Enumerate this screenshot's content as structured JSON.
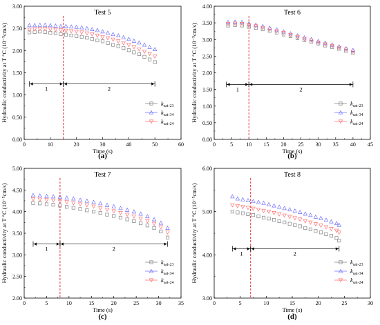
{
  "chart_data": [
    {
      "type": "scatter",
      "title": "Test 5",
      "caption": "(a)",
      "xlabel": "Time (s)",
      "ylabel": "Hydraulic conductivity at T °C (10⁻⁵cm/s)",
      "xlim": [
        0,
        60
      ],
      "ylim": [
        0.0,
        3.0
      ],
      "xticks": [
        "0",
        "10",
        "20",
        "30",
        "40",
        "50",
        "60"
      ],
      "yticks": [
        "0.00",
        "0.50",
        "1.00",
        "1.50",
        "2.00",
        "2.50",
        "3.00"
      ],
      "divider_x": 15,
      "regions": [
        {
          "label": "1",
          "from": 2,
          "to": 15,
          "y": 1.25
        },
        {
          "label": "2",
          "from": 15,
          "to": 50,
          "y": 1.25
        }
      ],
      "legend": {
        "placement": "lower-right",
        "entries": [
          "k|sat-23",
          "k|sat-34",
          "k|sat-24"
        ]
      },
      "series": [
        {
          "name": "k|sat-23",
          "color": "#7f7f7f",
          "marker": "square",
          "x": [
            2,
            4,
            6,
            8,
            10,
            12,
            14,
            16,
            18,
            20,
            22,
            24,
            26,
            28,
            30,
            32,
            34,
            36,
            38,
            40,
            42,
            44,
            46,
            48,
            50
          ],
          "y": [
            2.41,
            2.42,
            2.43,
            2.42,
            2.4,
            2.39,
            2.37,
            2.36,
            2.34,
            2.33,
            2.31,
            2.29,
            2.26,
            2.23,
            2.21,
            2.17,
            2.13,
            2.1,
            2.06,
            2.01,
            1.96,
            1.92,
            1.86,
            1.8,
            1.74
          ]
        },
        {
          "name": "k|sat-34",
          "color": "#6f6fff",
          "marker": "triangle-up",
          "x": [
            2,
            4,
            6,
            8,
            10,
            12,
            14,
            16,
            18,
            20,
            22,
            24,
            26,
            28,
            30,
            32,
            34,
            36,
            38,
            40,
            42,
            44,
            46,
            48,
            50
          ],
          "y": [
            2.57,
            2.57,
            2.58,
            2.58,
            2.57,
            2.56,
            2.55,
            2.55,
            2.54,
            2.53,
            2.52,
            2.5,
            2.48,
            2.46,
            2.43,
            2.4,
            2.37,
            2.34,
            2.3,
            2.26,
            2.22,
            2.18,
            2.13,
            2.08,
            2.03
          ]
        },
        {
          "name": "k|sat-24",
          "color": "#ff6f6f",
          "marker": "triangle-down",
          "x": [
            2,
            4,
            6,
            8,
            10,
            12,
            14,
            16,
            18,
            20,
            22,
            24,
            26,
            28,
            30,
            32,
            34,
            36,
            38,
            40,
            42,
            44,
            46,
            48,
            50
          ],
          "y": [
            2.47,
            2.48,
            2.49,
            2.49,
            2.48,
            2.47,
            2.46,
            2.45,
            2.44,
            2.43,
            2.41,
            2.39,
            2.37,
            2.34,
            2.31,
            2.28,
            2.25,
            2.21,
            2.17,
            2.13,
            2.08,
            2.03,
            1.98,
            1.93,
            1.87
          ]
        }
      ]
    },
    {
      "type": "scatter",
      "title": "Test 6",
      "caption": "(b)",
      "xlabel": "Time (s)",
      "ylabel": "Hydraulic conductivity at T °C (10⁻⁵cm/s)",
      "xlim": [
        0,
        45
      ],
      "ylim": [
        0.0,
        4.0
      ],
      "xticks": [
        "0",
        "5",
        "10",
        "15",
        "20",
        "25",
        "30",
        "35",
        "40",
        "45"
      ],
      "yticks": [
        "0.00",
        "0.50",
        "1.00",
        "1.50",
        "2.00",
        "2.50",
        "3.00",
        "3.50",
        "4.00"
      ],
      "divider_x": 10,
      "regions": [
        {
          "label": "1",
          "from": 3.5,
          "to": 10,
          "y": 1.65
        },
        {
          "label": "2",
          "from": 10,
          "to": 40,
          "y": 1.65
        }
      ],
      "legend": {
        "placement": "lower-right",
        "entries": [
          "k|sat-23",
          "k|sat-34",
          "k|sat-24"
        ]
      },
      "series": [
        {
          "name": "k|sat-23",
          "color": "#7f7f7f",
          "marker": "square",
          "x": [
            4,
            6,
            8,
            10,
            12,
            14,
            16,
            18,
            20,
            22,
            24,
            26,
            28,
            30,
            32,
            34,
            36,
            38,
            40
          ],
          "y": [
            3.42,
            3.43,
            3.42,
            3.38,
            3.35,
            3.31,
            3.26,
            3.21,
            3.15,
            3.1,
            3.04,
            2.98,
            2.93,
            2.88,
            2.82,
            2.77,
            2.72,
            2.66,
            2.6
          ]
        },
        {
          "name": "k|sat-34",
          "color": "#6f6fff",
          "marker": "triangle-up",
          "x": [
            4,
            6,
            8,
            10,
            12,
            14,
            16,
            18,
            20,
            22,
            24,
            26,
            28,
            30,
            32,
            34,
            36,
            38,
            40
          ],
          "y": [
            3.52,
            3.53,
            3.52,
            3.48,
            3.44,
            3.4,
            3.35,
            3.3,
            3.24,
            3.18,
            3.12,
            3.06,
            3.01,
            2.95,
            2.9,
            2.84,
            2.79,
            2.73,
            2.68
          ]
        },
        {
          "name": "k|sat-24",
          "color": "#ff6f6f",
          "marker": "triangle-down",
          "x": [
            4,
            6,
            8,
            10,
            12,
            14,
            16,
            18,
            20,
            22,
            24,
            26,
            28,
            30,
            32,
            34,
            36,
            38,
            40
          ],
          "y": [
            3.47,
            3.48,
            3.47,
            3.43,
            3.4,
            3.35,
            3.3,
            3.25,
            3.2,
            3.14,
            3.08,
            3.02,
            2.97,
            2.91,
            2.86,
            2.81,
            2.75,
            2.7,
            2.64
          ]
        }
      ]
    },
    {
      "type": "scatter",
      "title": "Test 7",
      "caption": "(c)",
      "xlabel": "Time (s)",
      "ylabel": "Hydraulic conductivity at T °C (10⁻⁵cm/s)",
      "xlim": [
        0,
        35
      ],
      "ylim": [
        2.0,
        5.0
      ],
      "xticks": [
        "0",
        "5",
        "10",
        "15",
        "20",
        "25",
        "30",
        "35"
      ],
      "yticks": [
        "2.00",
        "2.50",
        "3.00",
        "3.50",
        "4.00",
        "4.50",
        "5.00"
      ],
      "divider_x": 8,
      "regions": [
        {
          "label": "1",
          "from": 2,
          "to": 8,
          "y": 3.25
        },
        {
          "label": "2",
          "from": 8,
          "to": 32,
          "y": 3.25
        }
      ],
      "legend": {
        "placement": "lower-right",
        "entries": [
          "k|sat-23",
          "k|sat-34",
          "k|sat-24"
        ]
      },
      "series": [
        {
          "name": "k|sat-23",
          "color": "#7f7f7f",
          "marker": "square",
          "x": [
            2,
            3.5,
            5,
            6.5,
            8,
            9.5,
            11,
            12.5,
            14,
            15.5,
            17,
            18.5,
            20,
            21.5,
            23,
            24.5,
            26,
            27.5,
            29,
            30.5,
            32
          ],
          "y": [
            4.2,
            4.19,
            4.17,
            4.16,
            4.14,
            4.11,
            4.09,
            4.06,
            4.03,
            4.0,
            3.97,
            3.93,
            3.9,
            3.86,
            3.82,
            3.78,
            3.73,
            3.68,
            3.62,
            3.54,
            3.4
          ]
        },
        {
          "name": "k|sat-34",
          "color": "#6f6fff",
          "marker": "triangle-up",
          "x": [
            2,
            3.5,
            5,
            6.5,
            8,
            9.5,
            11,
            12.5,
            14,
            15.5,
            17,
            18.5,
            20,
            21.5,
            23,
            24.5,
            26,
            27.5,
            29,
            30.5,
            32
          ],
          "y": [
            4.38,
            4.37,
            4.36,
            4.35,
            4.34,
            4.32,
            4.3,
            4.27,
            4.25,
            4.22,
            4.19,
            4.15,
            4.12,
            4.08,
            4.04,
            4.0,
            3.95,
            3.89,
            3.82,
            3.74,
            3.62
          ]
        },
        {
          "name": "k|sat-24",
          "color": "#ff6f6f",
          "marker": "triangle-down",
          "x": [
            2,
            3.5,
            5,
            6.5,
            8,
            9.5,
            11,
            12.5,
            14,
            15.5,
            17,
            18.5,
            20,
            21.5,
            23,
            24.5,
            26,
            27.5,
            29,
            30.5,
            32
          ],
          "y": [
            4.29,
            4.28,
            4.27,
            4.26,
            4.24,
            4.22,
            4.2,
            4.17,
            4.15,
            4.12,
            4.08,
            4.05,
            4.01,
            3.97,
            3.93,
            3.89,
            3.84,
            3.78,
            3.72,
            3.64,
            3.52
          ]
        }
      ]
    },
    {
      "type": "scatter",
      "title": "Test 8",
      "caption": "(d)",
      "xlabel": "Time (s)",
      "ylabel": "Hydraulic conductivity at T °C (10⁻⁵cm/s)",
      "xlim": [
        0,
        30
      ],
      "ylim": [
        3.0,
        6.0
      ],
      "xticks": [
        "0",
        "5",
        "10",
        "15",
        "20",
        "25",
        "30"
      ],
      "yticks": [
        "3.00",
        "4.00",
        "5.00",
        "6.00"
      ],
      "divider_x": 7,
      "regions": [
        {
          "label": "1",
          "from": 3.5,
          "to": 7,
          "y": 4.14
        },
        {
          "label": "2",
          "from": 7,
          "to": 24,
          "y": 4.14
        }
      ],
      "legend": {
        "placement": "lower-right",
        "entries": [
          "k|sat-23",
          "k|sat-34",
          "k|sat-24"
        ]
      },
      "series": [
        {
          "name": "k|sat-23",
          "color": "#7f7f7f",
          "marker": "square",
          "x": [
            3.5,
            4.5,
            5.5,
            6.5,
            7.5,
            8.5,
            9.5,
            10.5,
            11.5,
            12.5,
            13.5,
            14.5,
            15.5,
            16.5,
            17.5,
            18.5,
            19.5,
            20.5,
            21.5,
            22.5,
            23.5,
            24
          ],
          "y": [
            5.0,
            4.98,
            4.96,
            4.94,
            4.92,
            4.89,
            4.86,
            4.84,
            4.81,
            4.78,
            4.75,
            4.72,
            4.69,
            4.66,
            4.62,
            4.59,
            4.55,
            4.52,
            4.48,
            4.44,
            4.39,
            4.33
          ]
        },
        {
          "name": "k|sat-34",
          "color": "#6f6fff",
          "marker": "triangle-up",
          "x": [
            3.5,
            4.5,
            5.5,
            6.5,
            7.5,
            8.5,
            9.5,
            10.5,
            11.5,
            12.5,
            13.5,
            14.5,
            15.5,
            16.5,
            17.5,
            18.5,
            19.5,
            20.5,
            21.5,
            22.5,
            23.5,
            24
          ],
          "y": [
            5.35,
            5.3,
            5.28,
            5.26,
            5.24,
            5.22,
            5.2,
            5.17,
            5.14,
            5.11,
            5.08,
            5.05,
            5.02,
            4.99,
            4.95,
            4.92,
            4.88,
            4.85,
            4.81,
            4.77,
            4.73,
            4.69
          ]
        },
        {
          "name": "k|sat-24",
          "color": "#ff6f6f",
          "marker": "triangle-down",
          "x": [
            3.5,
            4.5,
            5.5,
            6.5,
            7.5,
            8.5,
            9.5,
            10.5,
            11.5,
            12.5,
            13.5,
            14.5,
            15.5,
            16.5,
            17.5,
            18.5,
            19.5,
            20.5,
            21.5,
            22.5,
            23.5,
            24
          ],
          "y": [
            5.15,
            5.13,
            5.11,
            5.09,
            5.07,
            5.05,
            5.02,
            5.0,
            4.97,
            4.94,
            4.91,
            4.88,
            4.85,
            4.82,
            4.78,
            4.75,
            4.71,
            4.68,
            4.64,
            4.6,
            4.56,
            4.52
          ]
        }
      ]
    }
  ]
}
